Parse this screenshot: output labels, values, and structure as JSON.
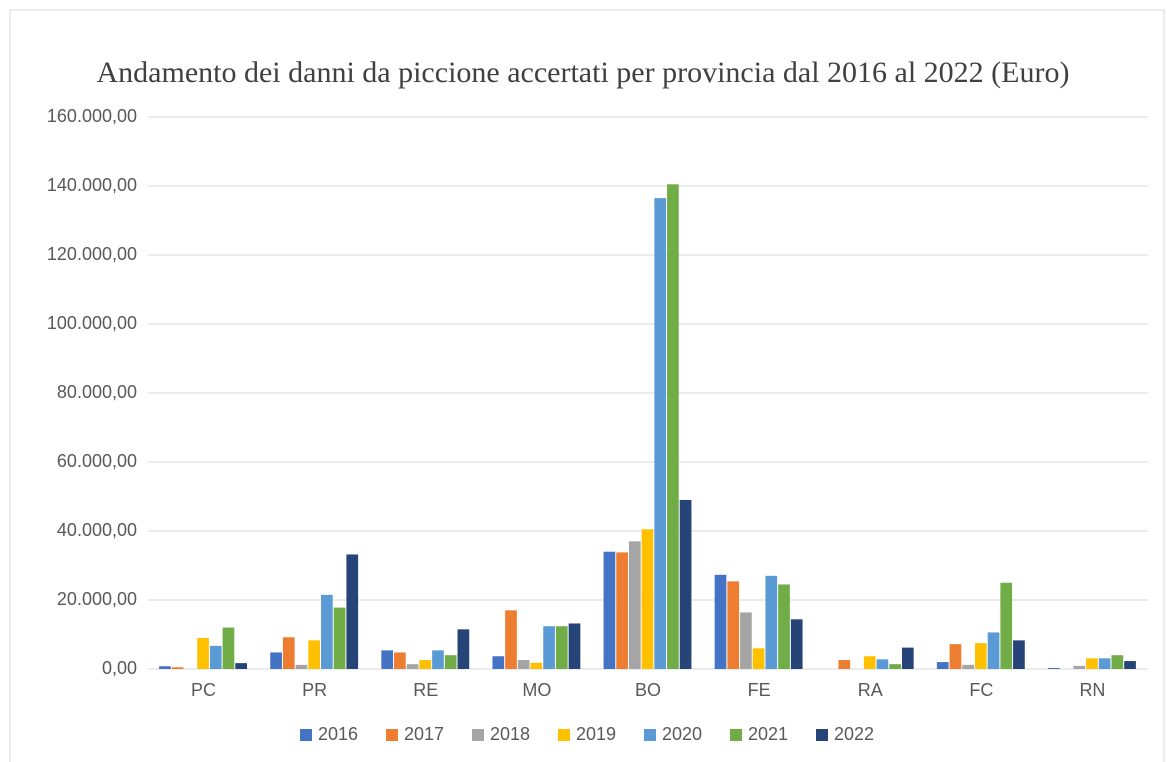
{
  "chart_data": {
    "type": "bar",
    "title": "Andamento dei danni da piccione accertati per provincia dal 2016 al 2022 (Euro)",
    "categories": [
      "PC",
      "PR",
      "RE",
      "MO",
      "BO",
      "FE",
      "RA",
      "FC",
      "RN"
    ],
    "series": [
      {
        "name": "2016",
        "color": "#4472c4",
        "values": [
          800,
          4800,
          5400,
          3700,
          34000,
          27300,
          0,
          2000,
          300
        ]
      },
      {
        "name": "2017",
        "color": "#ed7d31",
        "values": [
          500,
          9200,
          4800,
          17000,
          33800,
          25400,
          2600,
          7200,
          0
        ]
      },
      {
        "name": "2018",
        "color": "#a5a5a5",
        "values": [
          0,
          1200,
          1400,
          2600,
          37000,
          16400,
          0,
          1200,
          900
        ]
      },
      {
        "name": "2019",
        "color": "#ffc000",
        "values": [
          9000,
          8300,
          2600,
          1800,
          40500,
          6000,
          3700,
          7500,
          3100
        ]
      },
      {
        "name": "2020",
        "color": "#5b9bd5",
        "values": [
          6700,
          21500,
          5400,
          12400,
          136500,
          27000,
          2800,
          10600,
          3100
        ]
      },
      {
        "name": "2021",
        "color": "#70ad47",
        "values": [
          12000,
          17800,
          4000,
          12400,
          140500,
          24500,
          1400,
          25000,
          4000
        ]
      },
      {
        "name": "2022",
        "color": "#264478",
        "values": [
          1700,
          33200,
          11500,
          13200,
          49000,
          14400,
          6200,
          8300,
          2300
        ]
      }
    ],
    "ylim": [
      0,
      160000
    ],
    "yticks": [
      {
        "value": 0,
        "label": "0,00"
      },
      {
        "value": 20000,
        "label": "20.000,00"
      },
      {
        "value": 40000,
        "label": "40.000,00"
      },
      {
        "value": 60000,
        "label": "60.000,00"
      },
      {
        "value": 80000,
        "label": "80.000,00"
      },
      {
        "value": 100000,
        "label": "100.000,00"
      },
      {
        "value": 120000,
        "label": "120.000,00"
      },
      {
        "value": 140000,
        "label": "140.000,00"
      },
      {
        "value": 160000,
        "label": "160.000,00"
      }
    ],
    "grid": true,
    "legend": "bottom"
  }
}
